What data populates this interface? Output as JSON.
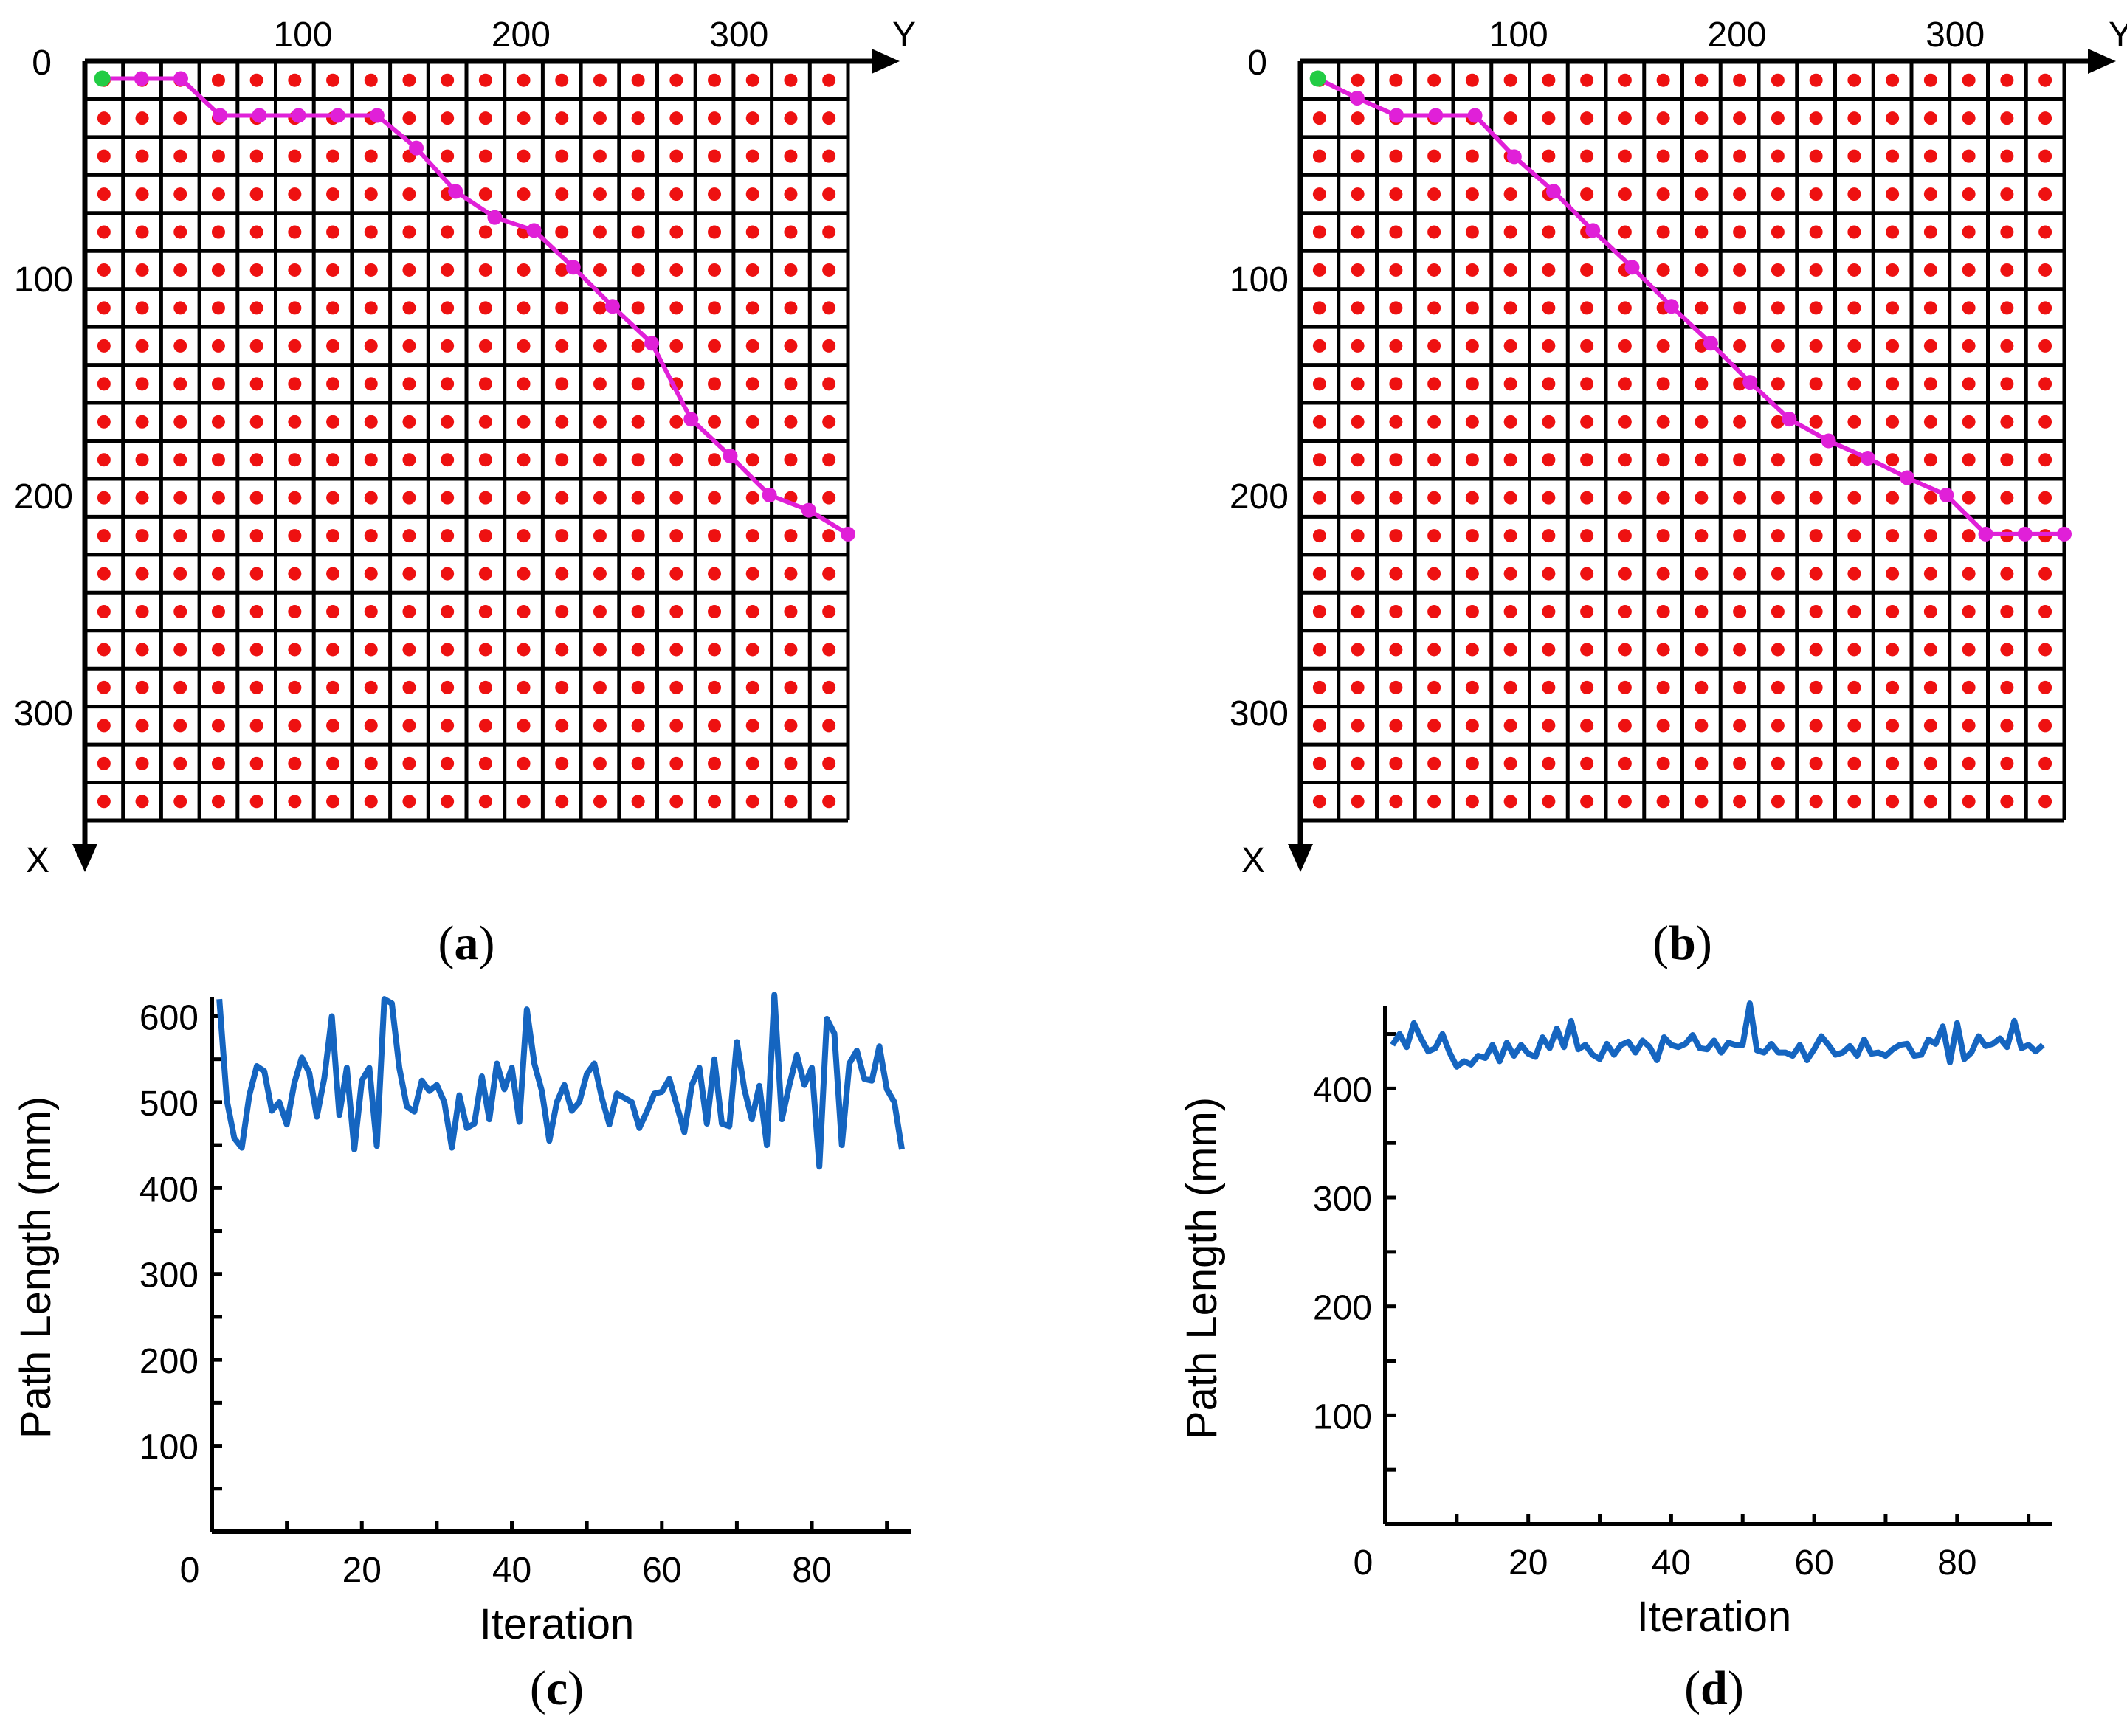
{
  "chart_data": [
    {
      "id": "a",
      "type": "scatter",
      "caption_open": "(",
      "caption_letter": "a",
      "caption_close": ")",
      "x_axis_label": "Y",
      "y_axis_label": "X",
      "origin_label": "0",
      "top_ticks": [
        100,
        200,
        300
      ],
      "left_ticks": [
        100,
        200,
        300
      ],
      "axis_range": [
        0,
        350
      ],
      "grid_cells": 20,
      "grid_color": "#000000",
      "node_color": "#ee1111",
      "path_color": "#e020d8",
      "start_color": "#22cc44",
      "path": [
        [
          8,
          8
        ],
        [
          26,
          8
        ],
        [
          44,
          8
        ],
        [
          62,
          25
        ],
        [
          80,
          25
        ],
        [
          98,
          25
        ],
        [
          116,
          25
        ],
        [
          134,
          25
        ],
        [
          152,
          40
        ],
        [
          170,
          60
        ],
        [
          188,
          72
        ],
        [
          206,
          78
        ],
        [
          224,
          95
        ],
        [
          242,
          113
        ],
        [
          260,
          130
        ],
        [
          278,
          165
        ],
        [
          296,
          182
        ],
        [
          314,
          200
        ],
        [
          332,
          207
        ],
        [
          350,
          218
        ]
      ]
    },
    {
      "id": "b",
      "type": "scatter",
      "caption_open": "(",
      "caption_letter": "b",
      "caption_close": ")",
      "x_axis_label": "Y",
      "y_axis_label": "X",
      "origin_label": "0",
      "top_ticks": [
        100,
        200,
        300
      ],
      "left_ticks": [
        100,
        200,
        300
      ],
      "axis_range": [
        0,
        350
      ],
      "grid_cells": 20,
      "grid_color": "#000000",
      "node_color": "#ee1111",
      "path_color": "#e020d8",
      "start_color": "#22cc44",
      "path": [
        [
          8,
          8
        ],
        [
          26,
          17
        ],
        [
          44,
          25
        ],
        [
          62,
          25
        ],
        [
          80,
          25
        ],
        [
          98,
          44
        ],
        [
          116,
          60
        ],
        [
          134,
          78
        ],
        [
          152,
          95
        ],
        [
          170,
          113
        ],
        [
          188,
          130
        ],
        [
          206,
          148
        ],
        [
          224,
          165
        ],
        [
          242,
          175
        ],
        [
          260,
          183
        ],
        [
          278,
          192
        ],
        [
          296,
          200
        ],
        [
          314,
          218
        ],
        [
          332,
          218
        ],
        [
          350,
          218
        ]
      ]
    },
    {
      "id": "c",
      "type": "line",
      "caption_open": "(",
      "caption_letter": "c",
      "caption_close": ")",
      "xlabel": "Iteration",
      "ylabel": "Path Length (mm)",
      "origin_label": "0",
      "xlim": [
        0,
        92
      ],
      "ylim": [
        0,
        615
      ],
      "x_ticks": [
        20,
        40,
        60,
        80
      ],
      "y_ticks": [
        100,
        200,
        300,
        400,
        500,
        600
      ],
      "line_color": "#1565c0",
      "series": [
        {
          "name": "path length",
          "values": [
            620,
            502,
            458,
            447,
            508,
            542,
            536,
            490,
            500,
            474,
            522,
            552,
            534,
            483,
            528,
            600,
            485,
            540,
            445,
            525,
            540,
            449,
            620,
            615,
            540,
            495,
            489,
            525,
            513,
            520,
            500,
            447,
            508,
            470,
            475,
            530,
            480,
            545,
            515,
            540,
            477,
            608,
            545,
            513,
            455,
            500,
            520,
            490,
            500,
            533,
            545,
            505,
            474,
            510,
            505,
            500,
            470,
            489,
            510,
            512,
            527,
            496,
            465,
            520,
            540,
            475,
            550,
            475,
            472,
            570,
            515,
            480,
            519,
            450,
            625,
            480,
            520,
            555,
            520,
            540,
            425,
            597,
            580,
            450,
            545,
            560,
            527,
            525,
            565,
            515,
            500,
            445
          ]
        }
      ]
    },
    {
      "id": "d",
      "type": "line",
      "caption_open": "(",
      "caption_letter": "d",
      "caption_close": ")",
      "xlabel": "Iteration",
      "ylabel": "Path Length (mm)",
      "origin_label": "0",
      "xlim": [
        0,
        92
      ],
      "ylim": [
        0,
        470
      ],
      "x_ticks": [
        20,
        40,
        60,
        80
      ],
      "y_ticks": [
        100,
        200,
        300,
        400
      ],
      "line_color": "#1565c0",
      "series": [
        {
          "name": "path length",
          "values": [
            440,
            450,
            438,
            460,
            446,
            434,
            437,
            450,
            433,
            420,
            425,
            422,
            430,
            428,
            440,
            425,
            442,
            430,
            440,
            432,
            429,
            447,
            437,
            455,
            438,
            462,
            436,
            440,
            431,
            427,
            441,
            431,
            440,
            443,
            433,
            444,
            438,
            426,
            447,
            440,
            438,
            441,
            449,
            437,
            436,
            444,
            433,
            442,
            440,
            440,
            478,
            435,
            433,
            441,
            433,
            433,
            430,
            440,
            426,
            436,
            448,
            440,
            431,
            433,
            439,
            430,
            445,
            432,
            433,
            430,
            436,
            440,
            441,
            430,
            431,
            445,
            441,
            457,
            424,
            460,
            427,
            433,
            448,
            439,
            441,
            446,
            438,
            462,
            437,
            440,
            434,
            440
          ]
        }
      ]
    }
  ]
}
